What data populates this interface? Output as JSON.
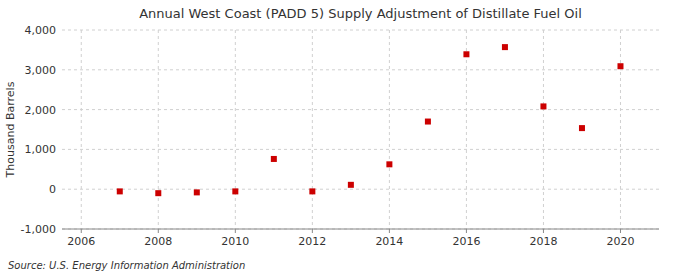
{
  "chart_data": {
    "type": "scatter",
    "title": "Annual West Coast (PADD 5) Supply Adjustment of Distillate Fuel Oil",
    "ylabel": "Thousand Barrels",
    "annotations": [
      "Source: U.S. Energy Information Administration"
    ],
    "x": [
      2007,
      2008,
      2009,
      2010,
      2011,
      2012,
      2013,
      2014,
      2015,
      2016,
      2017,
      2018,
      2019,
      2020
    ],
    "values": [
      -55,
      -100,
      -80,
      -55,
      760,
      -55,
      110,
      625,
      1700,
      3390,
      3570,
      2080,
      1535,
      3090
    ],
    "color": "#cc0000",
    "marker": "square",
    "xlim": [
      2005.5,
      2021
    ],
    "xticks": [
      2006,
      2008,
      2010,
      2012,
      2014,
      2016,
      2018,
      2020
    ],
    "ylim": [
      -1000,
      4000
    ],
    "yticks": [
      {
        "value": -1000,
        "label": "-1,000"
      },
      0,
      {
        "value": 1000,
        "label": "1,000"
      },
      {
        "value": 2000,
        "label": "2,000"
      },
      {
        "value": 3000,
        "label": "3,000"
      },
      {
        "value": 4000,
        "label": "4,000"
      }
    ],
    "grid": true
  }
}
